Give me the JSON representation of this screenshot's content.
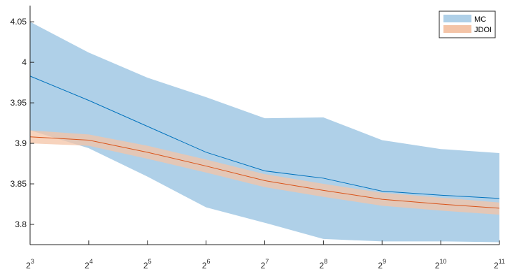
{
  "chart_data": {
    "type": "area",
    "x_exponents": [
      3,
      4,
      5,
      6,
      7,
      8,
      9,
      10,
      11
    ],
    "x_tick_base": "2",
    "x_scale": "log2",
    "y_ticks": [
      3.8,
      3.85,
      3.9,
      3.95,
      4,
      4.05
    ],
    "y_tick_labels": [
      "3.8",
      "3.85",
      "3.9",
      "3.95",
      "4",
      "4.05"
    ],
    "ylim": [
      3.775,
      4.07
    ],
    "grid": false,
    "legend_position": "top-right",
    "series": [
      {
        "name": "MC",
        "fill_color": "#afd0e8",
        "line_color": "#0072bd",
        "mean": [
          3.983,
          3.953,
          3.921,
          3.889,
          3.866,
          3.857,
          3.841,
          3.836,
          3.832
        ],
        "upper": [
          4.05,
          4.012,
          3.981,
          3.957,
          3.931,
          3.932,
          3.904,
          3.893,
          3.888
        ],
        "lower": [
          3.916,
          3.894,
          3.859,
          3.821,
          3.802,
          3.782,
          3.779,
          3.779,
          3.778
        ]
      },
      {
        "name": "JDOI",
        "fill_color": "#f4c4a7",
        "line_color": "#d95319",
        "mean": [
          3.908,
          3.904,
          3.889,
          3.872,
          3.854,
          3.842,
          3.831,
          3.825,
          3.82
        ],
        "upper": [
          3.916,
          3.911,
          3.897,
          3.88,
          3.862,
          3.85,
          3.839,
          3.833,
          3.827
        ],
        "lower": [
          3.9,
          3.897,
          3.881,
          3.864,
          3.846,
          3.834,
          3.823,
          3.817,
          3.812
        ]
      }
    ]
  }
}
